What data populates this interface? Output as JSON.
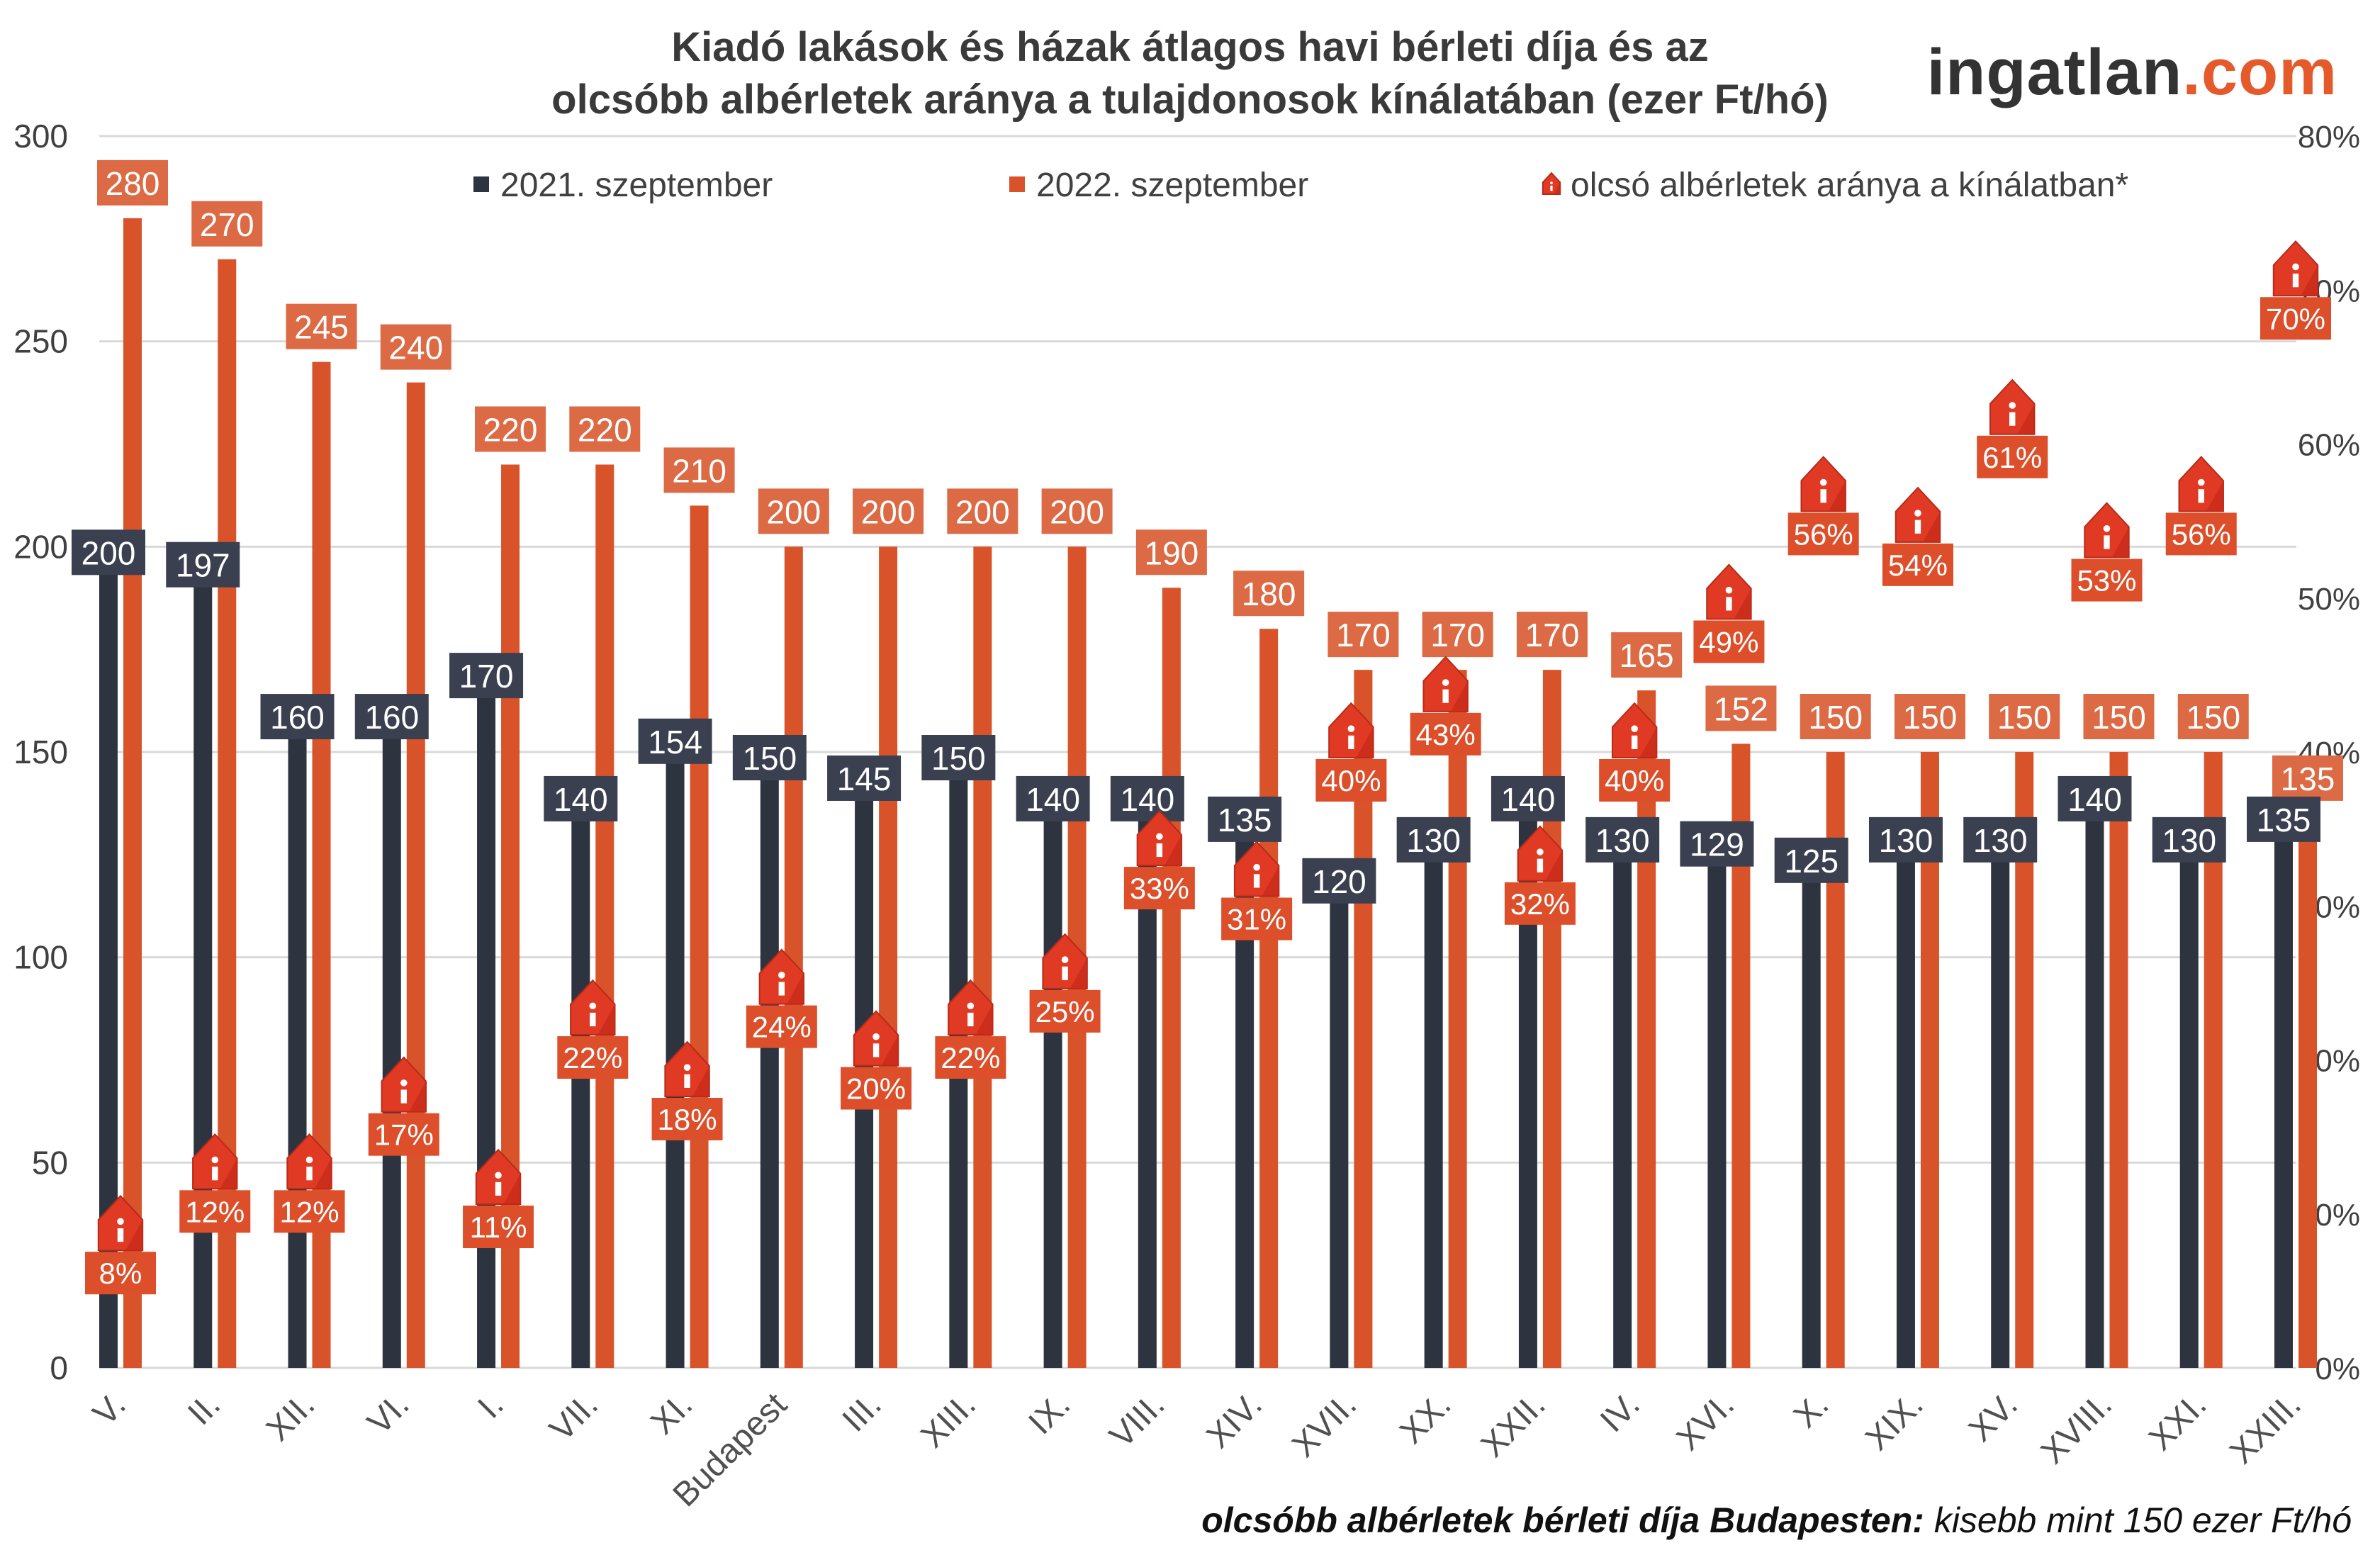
{
  "chart_data": {
    "type": "bar",
    "title_line1": "Kiadó lakások és házak átlagos havi bérleti díja és az",
    "title_line2": "olcsóbb albérletek aránya a tulajdonosok kínálatában (ezer Ft/hó)",
    "logo_part1": "ingatlan",
    "logo_part2": ".com",
    "footnote_bold": "olcsóbb albérletek bérleti díja Budapesten:",
    "footnote_rest": " kisebb mint 150 ezer Ft/hó",
    "categories": [
      "V.",
      "II.",
      "XII.",
      "VI.",
      "I.",
      "VII.",
      "XI.",
      "Budapest",
      "III.",
      "XIII.",
      "IX.",
      "VIII.",
      "XIV.",
      "XVII.",
      "XX.",
      "XXII.",
      "IV.",
      "XVI.",
      "X.",
      "XIX.",
      "XV.",
      "XVIII.",
      "XXI.",
      "XXIII."
    ],
    "series": [
      {
        "name": "2021. szeptember",
        "color": "#2e3340",
        "values": [
          200,
          197,
          160,
          160,
          170,
          140,
          154,
          150,
          145,
          150,
          140,
          140,
          135,
          120,
          130,
          140,
          130,
          129,
          125,
          130,
          130,
          140,
          130,
          135
        ]
      },
      {
        "name": "2022. szeptember",
        "color": "#d9532a",
        "values": [
          280,
          270,
          245,
          240,
          220,
          220,
          210,
          200,
          200,
          200,
          200,
          190,
          180,
          170,
          170,
          170,
          165,
          152,
          150,
          150,
          150,
          150,
          150,
          135
        ]
      },
      {
        "name": "olcsó albérletek aránya a kínálatban*",
        "color": "#e0402a",
        "axis": "right",
        "values": [
          8,
          12,
          12,
          17,
          11,
          22,
          18,
          24,
          20,
          22,
          25,
          33,
          31,
          40,
          43,
          32,
          40,
          49,
          56,
          54,
          61,
          53,
          56,
          70
        ],
        "labels": [
          "8%",
          "12%",
          "12%",
          "17%",
          "11%",
          "22%",
          "18%",
          "24%",
          "20%",
          "22%",
          "25%",
          "33%",
          "31%",
          "40%",
          "43%",
          "32%",
          "40%",
          "49%",
          "56%",
          "54%",
          "61%",
          "53%",
          "56%",
          "70%"
        ]
      }
    ],
    "ylim": [
      0,
      300
    ],
    "yticks": [
      "0",
      "50",
      "100",
      "150",
      "200",
      "250",
      "300"
    ],
    "y2lim": [
      0,
      80
    ],
    "y2ticks": [
      "0%",
      "10%",
      "20%",
      "30%",
      "40%",
      "50%",
      "60%",
      "70%",
      "80%"
    ],
    "grid": true,
    "legend_position": "top"
  }
}
